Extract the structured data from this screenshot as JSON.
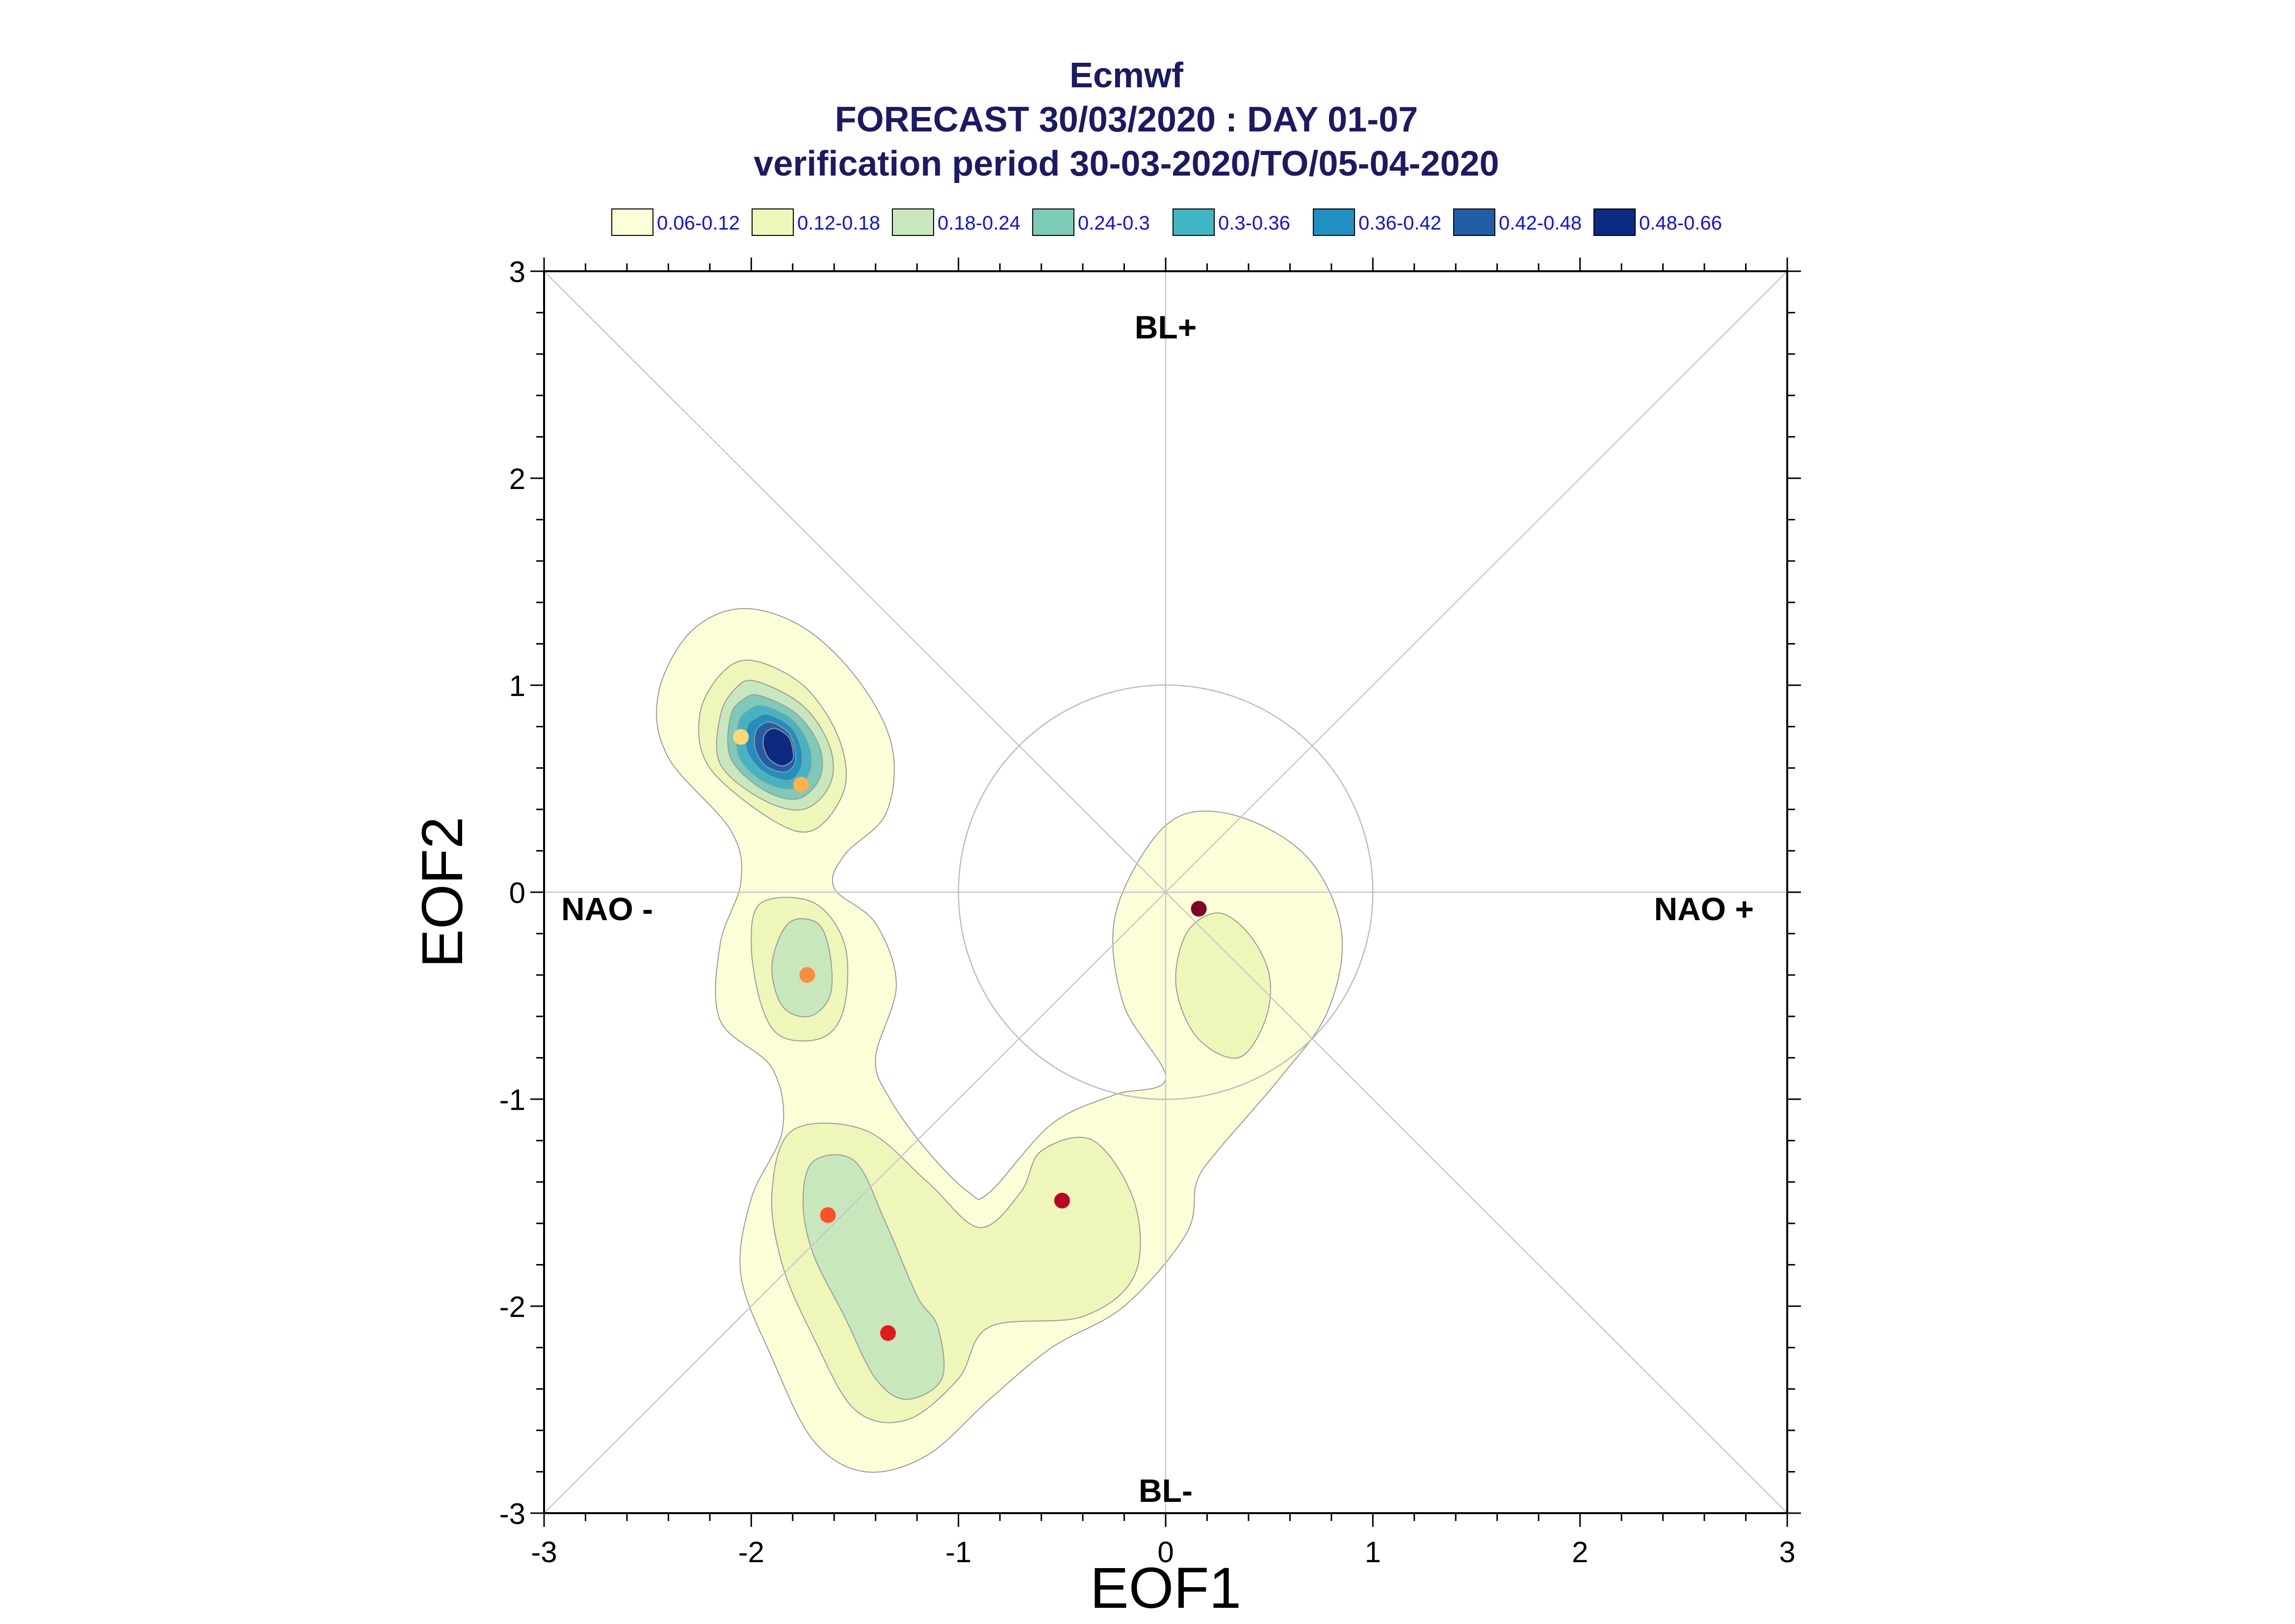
{
  "chart_data": {
    "type": "scatter",
    "title": "Ecmwf",
    "subtitle": "FORECAST 30/03/2020 : DAY 01-07",
    "subtitle2": "verification period 30-03-2020/TO/05-04-2020",
    "xlabel": "EOF1",
    "ylabel": "EOF2",
    "xlim": [
      -3,
      3
    ],
    "ylim": [
      -3,
      3
    ],
    "x_ticks": [
      "-3",
      "-2",
      "-1",
      "0",
      "1",
      "2",
      "3"
    ],
    "y_ticks": [
      "-3",
      "-2",
      "-1",
      "0",
      "1",
      "2",
      "3"
    ],
    "regime_labels": {
      "top": "BL+",
      "bottom": "BL-",
      "left": "NAO -",
      "right": "NAO +"
    },
    "legend": [
      {
        "label": "0.06-0.12",
        "color": "#fcfed8"
      },
      {
        "label": "0.12-0.18",
        "color": "#eef6b9"
      },
      {
        "label": "0.18-0.24",
        "color": "#c9e7bd"
      },
      {
        "label": "0.24-0.3",
        "color": "#7ecab8"
      },
      {
        "label": "0.3-0.36",
        "color": "#40b5c4"
      },
      {
        "label": "0.36-0.42",
        "color": "#1f90c0"
      },
      {
        "label": "0.42-0.48",
        "color": "#225ea8"
      },
      {
        "label": "0.48-0.66",
        "color": "#0c2a80"
      }
    ],
    "unit_circle_radius": 1,
    "points": [
      {
        "x": -2.05,
        "y": 0.75,
        "color": "#fed976"
      },
      {
        "x": -1.76,
        "y": 0.52,
        "color": "#feb24c"
      },
      {
        "x": -1.73,
        "y": -0.4,
        "color": "#fd8d3c"
      },
      {
        "x": -1.63,
        "y": -1.56,
        "color": "#fc4e2a"
      },
      {
        "x": -1.34,
        "y": -2.13,
        "color": "#e31a1c"
      },
      {
        "x": -0.5,
        "y": -1.49,
        "color": "#bd0026"
      },
      {
        "x": 0.16,
        "y": -0.08,
        "color": "#800026"
      }
    ],
    "density_contours": [
      {
        "level": 0,
        "regions": [
          [
            [
              -2.05,
              1.37
            ],
            [
              -1.75,
              1.28
            ],
            [
              -1.48,
              1.02
            ],
            [
              -1.32,
              0.7
            ],
            [
              -1.35,
              0.38
            ],
            [
              -1.55,
              0.18
            ],
            [
              -1.6,
              0.02
            ],
            [
              -1.4,
              -0.15
            ],
            [
              -1.3,
              -0.45
            ],
            [
              -1.4,
              -0.8
            ],
            [
              -1.33,
              -1.0
            ],
            [
              -1.15,
              -1.25
            ],
            [
              -0.95,
              -1.45
            ],
            [
              -0.85,
              -1.45
            ],
            [
              -0.55,
              -1.12
            ],
            [
              -0.25,
              -0.98
            ],
            [
              0.0,
              -0.9
            ],
            [
              -0.2,
              -0.55
            ],
            [
              -0.25,
              -0.15
            ],
            [
              -0.1,
              0.2
            ],
            [
              0.1,
              0.38
            ],
            [
              0.4,
              0.35
            ],
            [
              0.7,
              0.15
            ],
            [
              0.85,
              -0.2
            ],
            [
              0.78,
              -0.58
            ],
            [
              0.55,
              -0.9
            ],
            [
              0.25,
              -1.25
            ],
            [
              0.15,
              -1.4
            ],
            [
              0.1,
              -1.65
            ],
            [
              -0.2,
              -2.0
            ],
            [
              -0.55,
              -2.2
            ],
            [
              -0.85,
              -2.45
            ],
            [
              -1.15,
              -2.72
            ],
            [
              -1.45,
              -2.8
            ],
            [
              -1.7,
              -2.65
            ],
            [
              -1.9,
              -2.25
            ],
            [
              -2.05,
              -1.85
            ],
            [
              -2.0,
              -1.48
            ],
            [
              -1.85,
              -1.15
            ],
            [
              -1.9,
              -0.85
            ],
            [
              -2.15,
              -0.62
            ],
            [
              -2.15,
              -0.25
            ],
            [
              -2.05,
              0.05
            ],
            [
              -2.1,
              0.3
            ],
            [
              -2.4,
              0.65
            ],
            [
              -2.45,
              0.95
            ],
            [
              -2.3,
              1.25
            ]
          ]
        ]
      },
      {
        "level": 1,
        "regions": [
          [
            [
              -2.0,
              1.12
            ],
            [
              -1.75,
              1.0
            ],
            [
              -1.58,
              0.75
            ],
            [
              -1.55,
              0.5
            ],
            [
              -1.7,
              0.3
            ],
            [
              -1.9,
              0.35
            ],
            [
              -2.2,
              0.6
            ],
            [
              -2.25,
              0.85
            ],
            [
              -2.15,
              1.05
            ]
          ],
          [
            [
              -1.95,
              -0.05
            ],
            [
              -1.7,
              -0.05
            ],
            [
              -1.55,
              -0.25
            ],
            [
              -1.55,
              -0.55
            ],
            [
              -1.65,
              -0.7
            ],
            [
              -1.85,
              -0.7
            ],
            [
              -1.95,
              -0.55
            ],
            [
              -2.0,
              -0.25
            ]
          ],
          [
            [
              -1.8,
              -1.15
            ],
            [
              -1.45,
              -1.15
            ],
            [
              -1.15,
              -1.4
            ],
            [
              -0.9,
              -1.62
            ],
            [
              -0.7,
              -1.45
            ],
            [
              -0.6,
              -1.25
            ],
            [
              -0.35,
              -1.2
            ],
            [
              -0.15,
              -1.5
            ],
            [
              -0.15,
              -1.85
            ],
            [
              -0.4,
              -2.05
            ],
            [
              -0.85,
              -2.1
            ],
            [
              -1.0,
              -2.35
            ],
            [
              -1.25,
              -2.55
            ],
            [
              -1.5,
              -2.5
            ],
            [
              -1.7,
              -2.15
            ],
            [
              -1.85,
              -1.8
            ],
            [
              -1.9,
              -1.45
            ]
          ],
          [
            [
              0.25,
              -0.1
            ],
            [
              0.4,
              -0.2
            ],
            [
              0.5,
              -0.4
            ],
            [
              0.48,
              -0.62
            ],
            [
              0.35,
              -0.8
            ],
            [
              0.15,
              -0.7
            ],
            [
              0.05,
              -0.45
            ],
            [
              0.1,
              -0.2
            ]
          ]
        ]
      },
      {
        "level": 2,
        "regions": [
          [
            [
              -1.98,
              1.02
            ],
            [
              -1.75,
              0.9
            ],
            [
              -1.62,
              0.7
            ],
            [
              -1.62,
              0.52
            ],
            [
              -1.75,
              0.4
            ],
            [
              -1.95,
              0.45
            ],
            [
              -2.15,
              0.62
            ],
            [
              -2.15,
              0.85
            ],
            [
              -2.08,
              0.98
            ]
          ],
          [
            [
              -1.82,
              -0.15
            ],
            [
              -1.68,
              -0.15
            ],
            [
              -1.62,
              -0.3
            ],
            [
              -1.62,
              -0.5
            ],
            [
              -1.72,
              -0.6
            ],
            [
              -1.85,
              -0.55
            ],
            [
              -1.9,
              -0.35
            ]
          ],
          [
            [
              -1.7,
              -1.3
            ],
            [
              -1.5,
              -1.3
            ],
            [
              -1.35,
              -1.6
            ],
            [
              -1.2,
              -1.95
            ],
            [
              -1.1,
              -2.1
            ],
            [
              -1.08,
              -2.35
            ],
            [
              -1.25,
              -2.45
            ],
            [
              -1.4,
              -2.35
            ],
            [
              -1.55,
              -2.05
            ],
            [
              -1.7,
              -1.75
            ],
            [
              -1.75,
              -1.5
            ]
          ]
        ]
      },
      {
        "level": 3,
        "regions": [
          [
            [
              -1.96,
              0.95
            ],
            [
              -1.78,
              0.86
            ],
            [
              -1.67,
              0.7
            ],
            [
              -1.67,
              0.55
            ],
            [
              -1.78,
              0.45
            ],
            [
              -1.95,
              0.5
            ],
            [
              -2.1,
              0.65
            ],
            [
              -2.1,
              0.85
            ],
            [
              -2.04,
              0.93
            ]
          ]
        ]
      },
      {
        "level": 4,
        "regions": [
          [
            [
              -1.94,
              0.9
            ],
            [
              -1.8,
              0.83
            ],
            [
              -1.72,
              0.7
            ],
            [
              -1.72,
              0.58
            ],
            [
              -1.8,
              0.5
            ],
            [
              -1.95,
              0.54
            ],
            [
              -2.06,
              0.66
            ],
            [
              -2.06,
              0.82
            ],
            [
              -2.01,
              0.88
            ]
          ]
        ]
      },
      {
        "level": 5,
        "regions": [
          [
            [
              -1.92,
              0.86
            ],
            [
              -1.81,
              0.8
            ],
            [
              -1.76,
              0.7
            ],
            [
              -1.76,
              0.6
            ],
            [
              -1.82,
              0.54
            ],
            [
              -1.94,
              0.58
            ],
            [
              -2.02,
              0.68
            ],
            [
              -2.02,
              0.8
            ],
            [
              -1.98,
              0.84
            ]
          ]
        ]
      },
      {
        "level": 6,
        "regions": [
          [
            [
              -1.9,
              0.82
            ],
            [
              -1.82,
              0.77
            ],
            [
              -1.79,
              0.69
            ],
            [
              -1.79,
              0.62
            ],
            [
              -1.84,
              0.58
            ],
            [
              -1.93,
              0.61
            ],
            [
              -1.98,
              0.69
            ],
            [
              -1.98,
              0.77
            ],
            [
              -1.95,
              0.81
            ]
          ]
        ]
      },
      {
        "level": 7,
        "regions": [
          [
            [
              -1.88,
              0.79
            ],
            [
              -1.82,
              0.75
            ],
            [
              -1.8,
              0.69
            ],
            [
              -1.8,
              0.64
            ],
            [
              -1.85,
              0.61
            ],
            [
              -1.91,
              0.64
            ],
            [
              -1.94,
              0.7
            ],
            [
              -1.94,
              0.75
            ],
            [
              -1.92,
              0.78
            ]
          ]
        ]
      }
    ]
  }
}
